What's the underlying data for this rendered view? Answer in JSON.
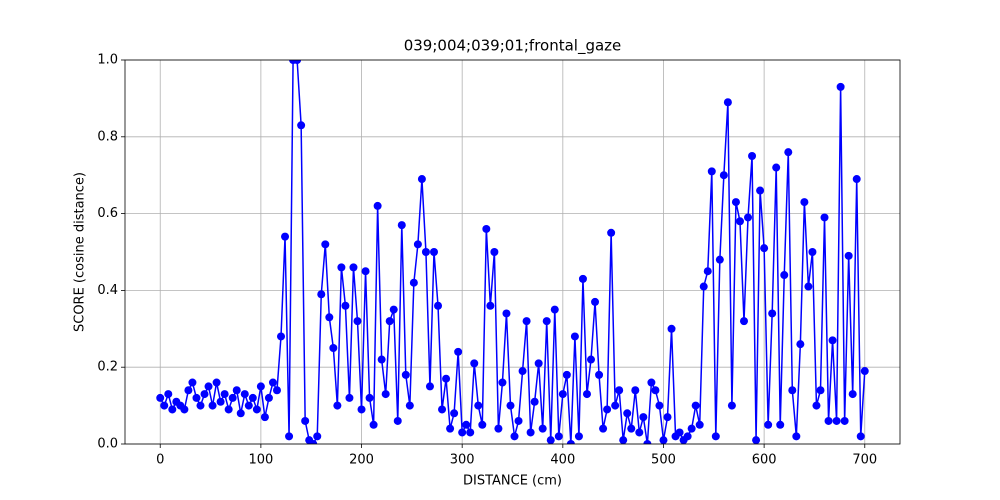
{
  "chart_data": {
    "type": "line",
    "title": "039;004;039;01;frontal_gaze",
    "xlabel": "DISTANCE (cm)",
    "ylabel": "SCORE (cosine distance)",
    "xlim": [
      -35,
      735
    ],
    "ylim": [
      0,
      1
    ],
    "xticks": [
      0,
      100,
      200,
      300,
      400,
      500,
      600,
      700
    ],
    "yticks": [
      {
        "value": 0,
        "label": "0.0"
      },
      0.2,
      0.4,
      0.6,
      0.8,
      {
        "value": 1,
        "label": "1.0"
      }
    ],
    "grid": true,
    "series": [
      {
        "name": "score",
        "color": "#0000ff",
        "x": [
          0,
          4,
          8,
          12,
          16,
          20,
          24,
          28,
          32,
          36,
          40,
          44,
          48,
          52,
          56,
          60,
          64,
          68,
          72,
          76,
          80,
          84,
          88,
          92,
          96,
          100,
          104,
          108,
          112,
          116,
          120,
          124,
          128,
          132,
          136,
          140,
          144,
          148,
          152,
          156,
          160,
          164,
          168,
          172,
          176,
          180,
          184,
          188,
          192,
          196,
          200,
          204,
          208,
          212,
          216,
          220,
          224,
          228,
          232,
          236,
          240,
          244,
          248,
          252,
          256,
          260,
          264,
          268,
          272,
          276,
          280,
          284,
          288,
          292,
          296,
          300,
          304,
          308,
          312,
          316,
          320,
          324,
          328,
          332,
          336,
          340,
          344,
          348,
          352,
          356,
          360,
          364,
          368,
          372,
          376,
          380,
          384,
          388,
          392,
          396,
          400,
          404,
          408,
          412,
          416,
          420,
          424,
          428,
          432,
          436,
          440,
          444,
          448,
          452,
          456,
          460,
          464,
          468,
          472,
          476,
          480,
          484,
          488,
          492,
          496,
          500,
          504,
          508,
          512,
          516,
          520,
          524,
          528,
          532,
          536,
          540,
          544,
          548,
          552,
          556,
          560,
          564,
          568,
          572,
          576,
          580,
          584,
          588,
          592,
          596,
          600,
          604,
          608,
          612,
          616,
          620,
          624,
          628,
          632,
          636,
          640,
          644,
          648,
          652,
          656,
          660,
          664,
          668,
          672,
          676,
          680,
          684,
          688,
          692,
          696,
          700
        ],
        "values": [
          0.12,
          0.1,
          0.13,
          0.09,
          0.11,
          0.1,
          0.09,
          0.14,
          0.16,
          0.12,
          0.1,
          0.13,
          0.15,
          0.1,
          0.16,
          0.11,
          0.13,
          0.09,
          0.12,
          0.14,
          0.08,
          0.13,
          0.1,
          0.12,
          0.09,
          0.15,
          0.07,
          0.12,
          0.16,
          0.14,
          0.28,
          0.54,
          0.02,
          1.0,
          1.0,
          0.83,
          0.06,
          0.01,
          0.0,
          0.02,
          0.39,
          0.52,
          0.33,
          0.25,
          0.1,
          0.46,
          0.36,
          0.12,
          0.46,
          0.32,
          0.09,
          0.45,
          0.12,
          0.05,
          0.62,
          0.22,
          0.13,
          0.32,
          0.35,
          0.06,
          0.57,
          0.18,
          0.1,
          0.42,
          0.52,
          0.69,
          0.5,
          0.15,
          0.5,
          0.36,
          0.09,
          0.17,
          0.04,
          0.08,
          0.24,
          0.03,
          0.05,
          0.03,
          0.21,
          0.1,
          0.05,
          0.56,
          0.36,
          0.5,
          0.04,
          0.16,
          0.34,
          0.1,
          0.02,
          0.06,
          0.19,
          0.32,
          0.03,
          0.11,
          0.21,
          0.04,
          0.32,
          0.01,
          0.35,
          0.02,
          0.13,
          0.18,
          0.0,
          0.28,
          0.02,
          0.43,
          0.13,
          0.22,
          0.37,
          0.18,
          0.04,
          0.09,
          0.55,
          0.1,
          0.14,
          0.01,
          0.08,
          0.04,
          0.14,
          0.03,
          0.07,
          0.0,
          0.16,
          0.14,
          0.1,
          0.01,
          0.07,
          0.3,
          0.02,
          0.03,
          0.01,
          0.02,
          0.04,
          0.1,
          0.05,
          0.41,
          0.45,
          0.71,
          0.02,
          0.48,
          0.7,
          0.89,
          0.1,
          0.63,
          0.58,
          0.32,
          0.59,
          0.75,
          0.01,
          0.66,
          0.51,
          0.05,
          0.34,
          0.72,
          0.05,
          0.44,
          0.76,
          0.14,
          0.02,
          0.26,
          0.63,
          0.41,
          0.5,
          0.1,
          0.14,
          0.59,
          0.06,
          0.27,
          0.06,
          0.93,
          0.06,
          0.49,
          0.13,
          0.69,
          0.02,
          0.19
        ]
      }
    ]
  }
}
